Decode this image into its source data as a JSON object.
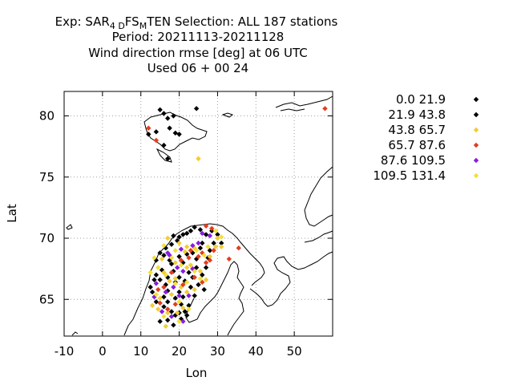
{
  "title": {
    "line1_a": "Exp: SAR",
    "line1_sub1": "4 D",
    "line1_b": "FS",
    "line1_sub2": "M",
    "line1_c": "TEN   Selection: ALL    187 stations",
    "line2": "Period: 20211113-20211128",
    "line3": "Wind direction rmse [deg] at  06 UTC",
    "line4": "Used  06 + 00 24"
  },
  "chart_data": {
    "type": "scatter",
    "xlabel": "Lon",
    "ylabel": "Lat",
    "xlim": [
      -10,
      60
    ],
    "ylim": [
      62,
      82
    ],
    "xticks": [
      "-10",
      "0",
      "10",
      "20",
      "30",
      "40",
      "50"
    ],
    "xtick_values": [
      -10,
      0,
      10,
      20,
      30,
      40,
      50
    ],
    "yticks": [
      "65",
      "70",
      "75",
      "80"
    ],
    "ytick_values": [
      65,
      70,
      75,
      80
    ],
    "grid": true,
    "legend_position": "right",
    "series": [
      {
        "name": "0.0 21.9",
        "color": "#000000",
        "points": [
          [
            15,
            80.5
          ],
          [
            16,
            80.2
          ],
          [
            17,
            79.8
          ],
          [
            17.5,
            79.0
          ],
          [
            18.5,
            80.0
          ],
          [
            12,
            78.5
          ],
          [
            14,
            78.7
          ],
          [
            16,
            77.6
          ],
          [
            19,
            78.6
          ],
          [
            24.5,
            80.6
          ],
          [
            20,
            78.5
          ],
          [
            17,
            76.5
          ],
          [
            16.5,
            69.2
          ],
          [
            18,
            69.5
          ],
          [
            19.5,
            69.8
          ],
          [
            20,
            70.1
          ],
          [
            21,
            70.3
          ],
          [
            22,
            70.4
          ],
          [
            23,
            70.6
          ],
          [
            24,
            70.9
          ],
          [
            25.5,
            70.7
          ],
          [
            27,
            70.3
          ],
          [
            28.5,
            70.6
          ],
          [
            30,
            70.3
          ],
          [
            15,
            68.8
          ],
          [
            16,
            68.6
          ],
          [
            17.5,
            68.2
          ],
          [
            18,
            67.9
          ],
          [
            20,
            68.5
          ],
          [
            21,
            68.0
          ],
          [
            22,
            68.7
          ],
          [
            26,
            69.6
          ],
          [
            28,
            69.0
          ],
          [
            29,
            69.6
          ],
          [
            14,
            67.0
          ],
          [
            15,
            66.6
          ],
          [
            16.5,
            66.2
          ],
          [
            17,
            65.7
          ],
          [
            19,
            66.4
          ],
          [
            20,
            65.6
          ],
          [
            21,
            65.2
          ],
          [
            23,
            66.0
          ],
          [
            25,
            66.2
          ],
          [
            26,
            67.0
          ],
          [
            27,
            67.6
          ],
          [
            26.5,
            65.8
          ],
          [
            13,
            65.6
          ],
          [
            14,
            64.8
          ],
          [
            16,
            64.4
          ],
          [
            17,
            64.8
          ],
          [
            18,
            64.0
          ],
          [
            19,
            63.7
          ],
          [
            20,
            63.9
          ],
          [
            21.5,
            64.0
          ],
          [
            22.5,
            64.5
          ],
          [
            24,
            65.3
          ],
          [
            22,
            63.7
          ],
          [
            15,
            63.2
          ],
          [
            17,
            63.3
          ],
          [
            18.5,
            62.9
          ],
          [
            20.5,
            63.4
          ],
          [
            12.5,
            66.0
          ],
          [
            24.5,
            67.6
          ],
          [
            23.5,
            68.8
          ],
          [
            18.5,
            70.2
          ],
          [
            27.5,
            68.4
          ],
          [
            31,
            69.6
          ]
        ]
      },
      {
        "name": "21.9 43.8",
        "color": "#000000",
        "points": [
          [
            14,
            68.2
          ],
          [
            15.5,
            67.4
          ],
          [
            17,
            66.8
          ],
          [
            18.5,
            67.3
          ],
          [
            20,
            66.8
          ],
          [
            21.5,
            66.5
          ],
          [
            22.5,
            67.2
          ],
          [
            23.5,
            66.8
          ],
          [
            24.5,
            68.3
          ],
          [
            25.5,
            69.2
          ],
          [
            13.5,
            66.6
          ],
          [
            16,
            65.2
          ],
          [
            19,
            65.1
          ],
          [
            20.5,
            64.6
          ]
        ]
      },
      {
        "name": "43.8 65.7",
        "color": "#f2cc33",
        "points": [
          [
            25,
            76.5
          ],
          [
            30,
            70.0
          ],
          [
            31,
            69.3
          ],
          [
            29.5,
            69.3
          ],
          [
            24,
            69.2
          ],
          [
            22,
            69.3
          ],
          [
            20,
            69.6
          ],
          [
            17,
            70.0
          ],
          [
            15.5,
            68.3
          ],
          [
            19,
            68.0
          ],
          [
            22,
            67.6
          ],
          [
            25.5,
            67.3
          ],
          [
            17.5,
            66.5
          ],
          [
            20.5,
            66.0
          ],
          [
            22,
            65.6
          ],
          [
            24,
            65.8
          ],
          [
            15,
            65.1
          ],
          [
            18,
            65.4
          ],
          [
            21,
            64.3
          ],
          [
            19.5,
            63.9
          ],
          [
            17,
            63.9
          ],
          [
            16.5,
            62.8
          ],
          [
            14.5,
            64.2
          ],
          [
            13,
            64.5
          ],
          [
            28,
            68.5
          ],
          [
            27,
            66.6
          ],
          [
            23,
            67.8
          ],
          [
            19,
            66.7
          ],
          [
            16,
            67.2
          ],
          [
            21.5,
            68.9
          ]
        ]
      },
      {
        "name": "65.7 87.6",
        "color": "#e23d1e",
        "points": [
          [
            12,
            79.0
          ],
          [
            14,
            78.0
          ],
          [
            58,
            80.6
          ],
          [
            27,
            71.0
          ],
          [
            28.5,
            70.8
          ],
          [
            29,
            69.0
          ],
          [
            28,
            68.2
          ],
          [
            27,
            68.0
          ],
          [
            26,
            68.8
          ],
          [
            25,
            68.5
          ],
          [
            33,
            68.3
          ],
          [
            35.5,
            69.2
          ],
          [
            22.5,
            68.4
          ],
          [
            20.5,
            68.2
          ],
          [
            18,
            67.2
          ],
          [
            16,
            66.0
          ],
          [
            21,
            66.2
          ],
          [
            24,
            66.8
          ],
          [
            26,
            66.4
          ],
          [
            15,
            64.7
          ],
          [
            17,
            64.2
          ],
          [
            19,
            64.6
          ],
          [
            14.5,
            65.8
          ],
          [
            23,
            69.0
          ]
        ]
      },
      {
        "name": "87.6 109.5",
        "color": "#8a1be0",
        "points": [
          [
            26,
            70.4
          ],
          [
            28,
            70.2
          ],
          [
            25,
            69.6
          ],
          [
            23.5,
            69.4
          ],
          [
            20.5,
            69.1
          ],
          [
            17,
            68.8
          ],
          [
            19.5,
            67.6
          ],
          [
            21,
            67.3
          ],
          [
            23.5,
            67.5
          ],
          [
            14,
            66.3
          ],
          [
            16.5,
            65.6
          ],
          [
            18.5,
            66.0
          ],
          [
            20,
            65.3
          ],
          [
            22.5,
            65.3
          ],
          [
            13.5,
            65.2
          ],
          [
            15.5,
            64.0
          ],
          [
            18,
            63.6
          ],
          [
            21,
            63.2
          ],
          [
            17.5,
            68.6
          ]
        ]
      },
      {
        "name": "109.5 131.4",
        "color": "#f2e03a",
        "points": [
          [
            29.5,
            70.6
          ],
          [
            31,
            70.1
          ],
          [
            27.5,
            69.3
          ],
          [
            26.5,
            68.6
          ],
          [
            24.5,
            69.0
          ],
          [
            19,
            69.0
          ],
          [
            16,
            69.4
          ],
          [
            13.5,
            68.4
          ],
          [
            18,
            68.4
          ],
          [
            20.5,
            67.8
          ],
          [
            24,
            67.3
          ],
          [
            12.5,
            67.2
          ],
          [
            14.5,
            67.6
          ],
          [
            16.5,
            67.0
          ],
          [
            19,
            66.3
          ],
          [
            22,
            66.4
          ],
          [
            20,
            64.8
          ],
          [
            22.5,
            64.2
          ],
          [
            16,
            63.6
          ],
          [
            20,
            63.2
          ],
          [
            14,
            65.4
          ],
          [
            25.5,
            66.7
          ]
        ]
      }
    ]
  }
}
